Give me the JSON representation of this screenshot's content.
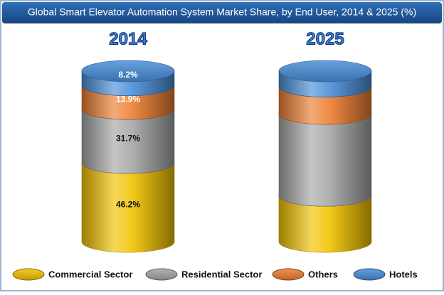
{
  "chart_data": {
    "type": "stacked-cylinder",
    "title": "Global Smart Elevator Automation System Market Share, by End User, 2014 & 2025 (%)",
    "categories": [
      "2014",
      "2025"
    ],
    "series": [
      {
        "name": "Commercial Sector",
        "color": "#f2c200",
        "values": [
          46.2,
          27
        ],
        "value_labels": [
          "46.2%",
          null
        ]
      },
      {
        "name": "Residential Sector",
        "color": "#a5a5a5",
        "values": [
          31.7,
          48
        ],
        "value_labels": [
          "31.7%",
          null
        ]
      },
      {
        "name": "Others",
        "color": "#ed7d31",
        "values": [
          13.9,
          16
        ],
        "value_labels": [
          "13.9%",
          null
        ]
      },
      {
        "name": "Hotels",
        "color": "#4a8fd8",
        "values": [
          8.2,
          9
        ],
        "value_labels": [
          "8.2%",
          null
        ]
      }
    ],
    "ylim": [
      0,
      100
    ],
    "legend": "bottom"
  }
}
